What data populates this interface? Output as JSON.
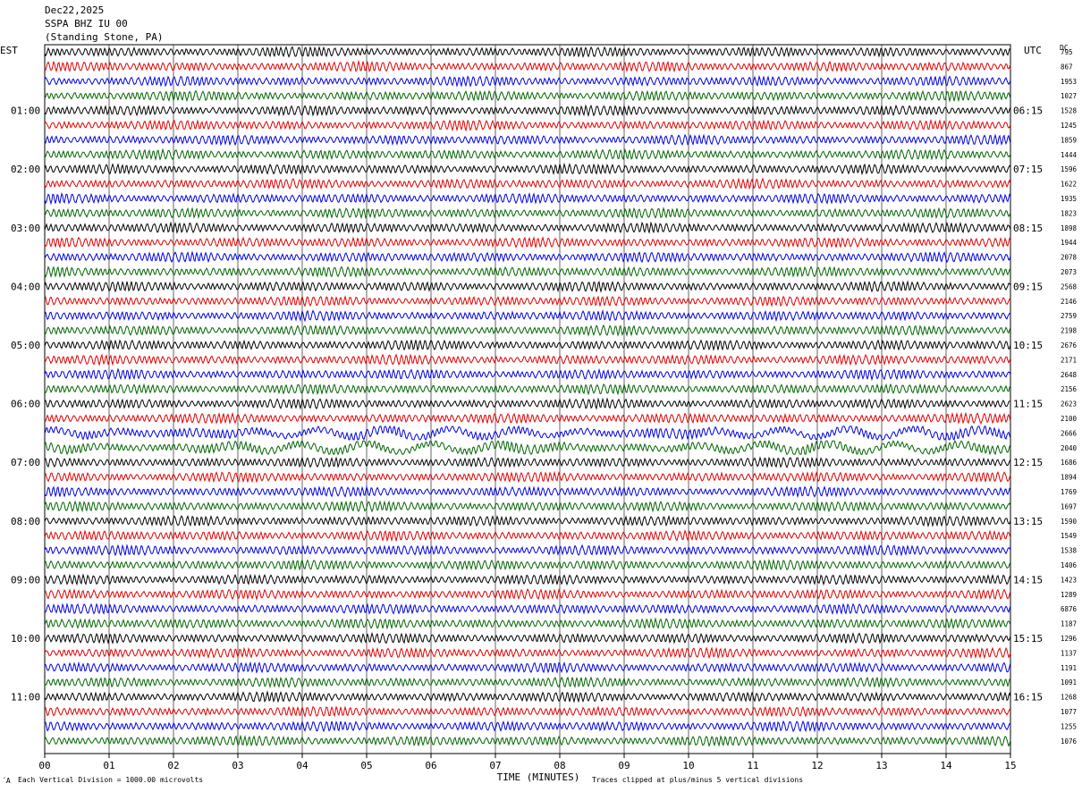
{
  "header": {
    "date": "Dec22,2025",
    "station": "SSPA BHZ IU 00",
    "location": "(Standing Stone, PA)"
  },
  "left_axis_label": "EST",
  "right_axis_label": "UTC",
  "dc_label": "DC",
  "footer": {
    "scale_note": "Each Vertical Division = 1000.00 microvolts",
    "clip_note": "Traces clipped at plus/minus 5 vertical divisions",
    "corner_mark": "´A"
  },
  "colors": {
    "trace": [
      "#000000",
      "#e00000",
      "#0000e0",
      "#006400"
    ],
    "grid": "#000000"
  },
  "chart_data": {
    "type": "line",
    "title": "",
    "xlabel": "TIME (MINUTES)",
    "ylabel": "",
    "xlim": [
      0,
      15
    ],
    "x_ticks": [
      "00",
      "01",
      "02",
      "03",
      "04",
      "05",
      "06",
      "07",
      "08",
      "09",
      "10",
      "11",
      "12",
      "13",
      "14",
      "15"
    ],
    "trace_minutes": 15,
    "traces_per_hour": 4,
    "left_hour_labels": [
      "01:00",
      "02:00",
      "03:00",
      "04:00",
      "05:00",
      "06:00",
      "07:00",
      "08:00",
      "09:00",
      "10:00",
      "11:00"
    ],
    "right_hour_labels": [
      "06:15",
      "07:15",
      "08:15",
      "09:15",
      "10:15",
      "11:15",
      "12:15",
      "13:15",
      "14:15",
      "15:15",
      "16:15"
    ],
    "dc_offsets": [
      "795",
      "867",
      "1953",
      "1027",
      "1528",
      "1245",
      "1859",
      "1444",
      "1596",
      "1622",
      "1935",
      "1823",
      "1898",
      "1944",
      "2078",
      "2073",
      "2568",
      "2146",
      "2759",
      "2198",
      "2676",
      "2171",
      "2648",
      "2156",
      "2623",
      "2100",
      "2666",
      "2040",
      "1686",
      "1894",
      "1769",
      "1697",
      "1590",
      "1549",
      "1538",
      "1406",
      "1423",
      "1289",
      "6876",
      "1187",
      "1296",
      "1137",
      "1191",
      "1091",
      "1268",
      "1077",
      "1255",
      "1076"
    ],
    "series": [
      {
        "name": "",
        "color_index": 0,
        "amplitude": 1
      }
    ],
    "event_rows": [
      26,
      27
    ],
    "grid": true
  }
}
